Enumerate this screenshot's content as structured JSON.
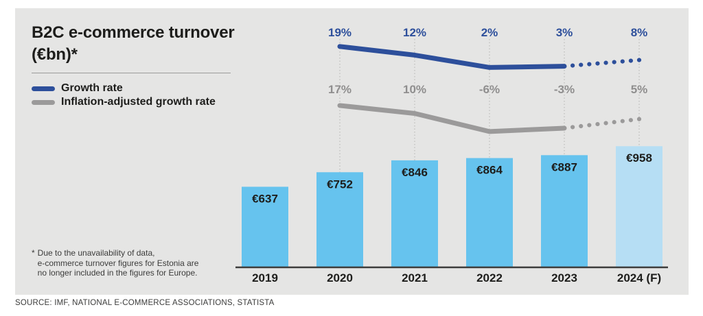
{
  "header": {
    "title_line1": "B2C e-commerce turnover",
    "title_line2": "(€bn)*"
  },
  "legend": {
    "items": [
      {
        "label": "Growth rate"
      },
      {
        "label": "Inflation-adjusted growth rate"
      }
    ]
  },
  "footnote": {
    "marker": "*",
    "lines": [
      "Due to the unavailability of data,",
      "e-commerce turnover figures for Estonia are",
      "no longer included in the figures for Europe."
    ]
  },
  "source": "SOURCE: IMF, NATIONAL E-COMMERCE ASSOCIATIONS, STATISTA",
  "colors": {
    "card_background": "#e5e5e4",
    "bar": "#66c3ee",
    "forecast_bar": "#b6def4",
    "growth_line": "#2d4f9b",
    "inflation_line": "#9b9a9a",
    "inflation_label": "#8f8e8e",
    "axis": "#3c3c3b",
    "gridline": "#b3b2b1",
    "text_dark": "#1d1d1b"
  },
  "chart_data": {
    "type": "bar",
    "title": "B2C e-commerce turnover (€bn)",
    "categories": [
      "2019",
      "2020",
      "2021",
      "2022",
      "2023",
      "2024 (F)"
    ],
    "bars": {
      "values": [
        637,
        752,
        846,
        864,
        887,
        958
      ],
      "labels": [
        "€637",
        "€752",
        "€846",
        "€864",
        "€887",
        "€958"
      ],
      "forecast_index": 5
    },
    "series": [
      {
        "name": "Growth rate",
        "type": "line",
        "color": "#2d4f9b",
        "label_color": "#2d4f9b",
        "x_categories": [
          "2020",
          "2021",
          "2022",
          "2023",
          "2024 (F)"
        ],
        "values_pct": [
          19,
          12,
          2,
          3,
          8
        ],
        "labels": [
          "19%",
          "12%",
          "2%",
          "3%",
          "8%"
        ],
        "dotted_last_segment": true
      },
      {
        "name": "Inflation-adjusted growth rate",
        "type": "line",
        "color": "#9b9a9a",
        "label_color": "#8f8e8e",
        "x_categories": [
          "2020",
          "2021",
          "2022",
          "2023",
          "2024 (F)"
        ],
        "values_pct": [
          17,
          10,
          -6,
          -3,
          5
        ],
        "labels": [
          "17%",
          "10%",
          "-6%",
          "-3%",
          "5%"
        ],
        "dotted_last_segment": true
      }
    ],
    "layout": {
      "grid": "vertical-dashed",
      "value_labels": "inside-bar-top",
      "legend_position": "top-left"
    }
  }
}
